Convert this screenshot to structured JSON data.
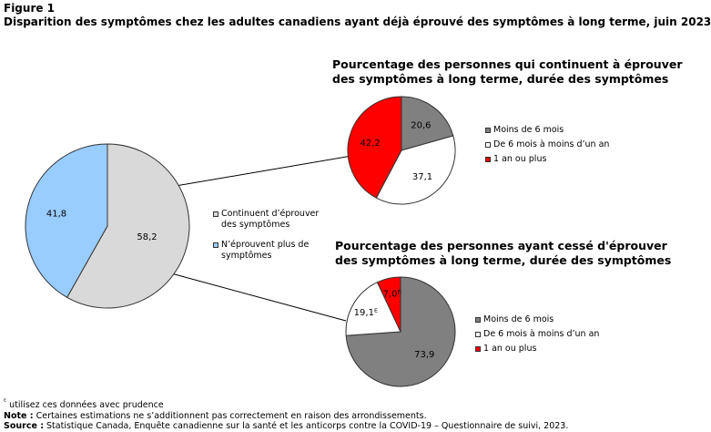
{
  "figure_label": "Figure 1",
  "figure_title": "Disparition  des symptômes chez les adultes canadiens ayant déjà éprouvé des symptômes à long terme, juin 2023",
  "colors": {
    "light_gray": "#d9d9d9",
    "light_blue": "#99ccff",
    "dark_gray": "#808080",
    "white": "#ffffff",
    "red": "#ff0000",
    "outline": "#333333"
  },
  "chart_data": [
    {
      "type": "pie",
      "title": "",
      "categories": [
        "Continuent d’éprouver des symptômes",
        "N’éprouvent plus de symptômes"
      ],
      "values": [
        58.2,
        41.8
      ],
      "labels": [
        "58,2",
        "41,8"
      ],
      "colors": [
        "#d9d9d9",
        "#99ccff"
      ],
      "legend_placement": "right"
    },
    {
      "type": "pie",
      "title": "Pourcentage des personnes qui continuent  à éprouver des symptômes à long  terme, durée des symptômes",
      "categories": [
        "Moins de 6 mois",
        "De 6 mois à moins d’un an",
        "1 an ou plus"
      ],
      "values": [
        20.6,
        37.1,
        42.2
      ],
      "labels": [
        "20,6",
        "37,1",
        "42,2"
      ],
      "colors": [
        "#808080",
        "#ffffff",
        "#ff0000"
      ],
      "legend_placement": "right"
    },
    {
      "type": "pie",
      "title": "Pourcentage des personnes ayant cessé d'éprouver des symptômes à long  terme, durée des symptômes",
      "categories": [
        "Moins de 6 mois",
        "De 6 mois à moins d’un an",
        "1 an ou plus"
      ],
      "values": [
        73.9,
        19.1,
        7.0
      ],
      "labels": [
        "73,9",
        "19,1ᴱ",
        "7,0ᴱ"
      ],
      "colors": [
        "#808080",
        "#ffffff",
        "#ff0000"
      ],
      "legend_placement": "right"
    }
  ],
  "footnotes": {
    "e_marker": "ᴱ",
    "e_text": " utilisez ces données avec prudence",
    "note_label": "Note :",
    "note_text": " Certaines estimations ne s’additionnent pas correctement en raison des arrondissements.",
    "source_label": "Source :",
    "source_text": " Statistique Canada, Enquête canadienne sur la santé et les anticorps contre la COVID-19 – Questionnaire de suivi, 2023."
  }
}
